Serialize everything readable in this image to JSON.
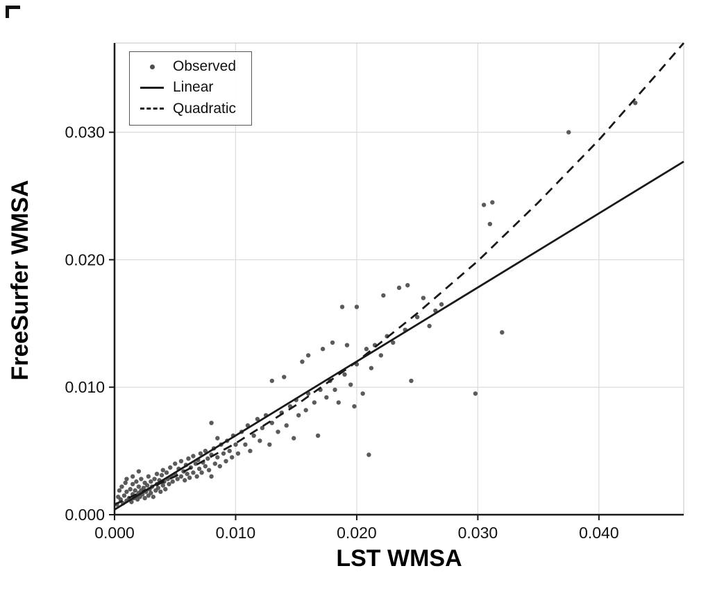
{
  "figure": {
    "background": "#ffffff",
    "accent_color": "#1a1a1a",
    "grid_color": "#dcdcdc",
    "point_color": "#4d4d4d"
  },
  "chart_data": {
    "type": "scatter",
    "title": "",
    "xlabel": "LST WMSA",
    "ylabel": "FreeSurfer WMSA",
    "xlim": [
      0,
      0.047
    ],
    "ylim": [
      0,
      0.037
    ],
    "xticks": [
      0.0,
      0.01,
      0.02,
      0.03,
      0.04
    ],
    "yticks": [
      0.0,
      0.01,
      0.02,
      0.03
    ],
    "grid": true,
    "legend_position": "top-left",
    "series": [
      {
        "name": "Observed",
        "type": "scatter",
        "color": "#4d4d4d",
        "points": [
          [
            0.0002,
            0.0008
          ],
          [
            0.0003,
            0.0014
          ],
          [
            0.0004,
            0.0019
          ],
          [
            0.0005,
            0.0012
          ],
          [
            0.0006,
            0.0022
          ],
          [
            0.0007,
            0.0009
          ],
          [
            0.0008,
            0.0015
          ],
          [
            0.0009,
            0.0025
          ],
          [
            0.001,
            0.0011
          ],
          [
            0.001,
            0.0018
          ],
          [
            0.001,
            0.0028
          ],
          [
            0.0012,
            0.0013
          ],
          [
            0.0013,
            0.002
          ],
          [
            0.0014,
            0.001
          ],
          [
            0.0015,
            0.0016
          ],
          [
            0.0015,
            0.0024
          ],
          [
            0.0015,
            0.003
          ],
          [
            0.0016,
            0.0013
          ],
          [
            0.0017,
            0.0019
          ],
          [
            0.0018,
            0.0015
          ],
          [
            0.0018,
            0.0026
          ],
          [
            0.0019,
            0.0012
          ],
          [
            0.002,
            0.0017
          ],
          [
            0.002,
            0.0022
          ],
          [
            0.002,
            0.0034
          ],
          [
            0.0021,
            0.0014
          ],
          [
            0.0022,
            0.0019
          ],
          [
            0.0022,
            0.0028
          ],
          [
            0.0023,
            0.0016
          ],
          [
            0.0024,
            0.0021
          ],
          [
            0.0025,
            0.0013
          ],
          [
            0.0025,
            0.0025
          ],
          [
            0.0026,
            0.0018
          ],
          [
            0.0027,
            0.0023
          ],
          [
            0.0028,
            0.0015
          ],
          [
            0.0028,
            0.003
          ],
          [
            0.0029,
            0.002
          ],
          [
            0.003,
            0.0017
          ],
          [
            0.003,
            0.0026
          ],
          [
            0.0031,
            0.0022
          ],
          [
            0.0032,
            0.0014
          ],
          [
            0.0033,
            0.0028
          ],
          [
            0.0034,
            0.0019
          ],
          [
            0.0035,
            0.0024
          ],
          [
            0.0035,
            0.0032
          ],
          [
            0.0036,
            0.0021
          ],
          [
            0.0037,
            0.0027
          ],
          [
            0.0038,
            0.0018
          ],
          [
            0.0039,
            0.0031
          ],
          [
            0.004,
            0.0023
          ],
          [
            0.004,
            0.0035
          ],
          [
            0.0041,
            0.0026
          ],
          [
            0.0042,
            0.002
          ],
          [
            0.0043,
            0.0033
          ],
          [
            0.0044,
            0.0028
          ],
          [
            0.0045,
            0.0024
          ],
          [
            0.0046,
            0.0037
          ],
          [
            0.0047,
            0.003
          ],
          [
            0.0048,
            0.0026
          ],
          [
            0.005,
            0.0032
          ],
          [
            0.005,
            0.004
          ],
          [
            0.0052,
            0.0028
          ],
          [
            0.0053,
            0.0036
          ],
          [
            0.0055,
            0.003
          ],
          [
            0.0055,
            0.0042
          ],
          [
            0.0057,
            0.0034
          ],
          [
            0.0058,
            0.0027
          ],
          [
            0.0059,
            0.0039
          ],
          [
            0.006,
            0.0032
          ],
          [
            0.0061,
            0.0044
          ],
          [
            0.0062,
            0.0029
          ],
          [
            0.0063,
            0.0037
          ],
          [
            0.0065,
            0.0033
          ],
          [
            0.0065,
            0.0046
          ],
          [
            0.0067,
            0.004
          ],
          [
            0.0068,
            0.003
          ],
          [
            0.0069,
            0.0043
          ],
          [
            0.007,
            0.0036
          ],
          [
            0.0071,
            0.0048
          ],
          [
            0.0072,
            0.0033
          ],
          [
            0.0073,
            0.0041
          ],
          [
            0.0075,
            0.0038
          ],
          [
            0.0075,
            0.005
          ],
          [
            0.0077,
            0.0044
          ],
          [
            0.0078,
            0.0035
          ],
          [
            0.008,
            0.0047
          ],
          [
            0.008,
            0.003
          ],
          [
            0.008,
            0.0072
          ],
          [
            0.0082,
            0.0052
          ],
          [
            0.0083,
            0.004
          ],
          [
            0.0085,
            0.0045
          ],
          [
            0.0085,
            0.006
          ],
          [
            0.0087,
            0.0038
          ],
          [
            0.0088,
            0.0055
          ],
          [
            0.009,
            0.0048
          ],
          [
            0.0092,
            0.0042
          ],
          [
            0.0093,
            0.0058
          ],
          [
            0.0095,
            0.005
          ],
          [
            0.0097,
            0.0045
          ],
          [
            0.0098,
            0.0062
          ],
          [
            0.01,
            0.0055
          ],
          [
            0.0102,
            0.0048
          ],
          [
            0.0105,
            0.0065
          ],
          [
            0.0108,
            0.0055
          ],
          [
            0.011,
            0.007
          ],
          [
            0.0112,
            0.005
          ],
          [
            0.0115,
            0.0062
          ],
          [
            0.0118,
            0.0075
          ],
          [
            0.012,
            0.0058
          ],
          [
            0.0122,
            0.0068
          ],
          [
            0.0125,
            0.0078
          ],
          [
            0.0128,
            0.0055
          ],
          [
            0.013,
            0.0072
          ],
          [
            0.013,
            0.0105
          ],
          [
            0.0135,
            0.0065
          ],
          [
            0.0138,
            0.008
          ],
          [
            0.014,
            0.0108
          ],
          [
            0.0142,
            0.007
          ],
          [
            0.0145,
            0.0085
          ],
          [
            0.0148,
            0.006
          ],
          [
            0.015,
            0.009
          ],
          [
            0.0152,
            0.0078
          ],
          [
            0.0155,
            0.012
          ],
          [
            0.0158,
            0.0082
          ],
          [
            0.016,
            0.0095
          ],
          [
            0.016,
            0.0125
          ],
          [
            0.0165,
            0.0088
          ],
          [
            0.0168,
            0.0062
          ],
          [
            0.017,
            0.0098
          ],
          [
            0.0172,
            0.013
          ],
          [
            0.0175,
            0.0092
          ],
          [
            0.0178,
            0.0105
          ],
          [
            0.018,
            0.0135
          ],
          [
            0.0182,
            0.0098
          ],
          [
            0.0185,
            0.0088
          ],
          [
            0.0188,
            0.0163
          ],
          [
            0.019,
            0.011
          ],
          [
            0.0192,
            0.0133
          ],
          [
            0.0195,
            0.0102
          ],
          [
            0.0198,
            0.0085
          ],
          [
            0.02,
            0.0118
          ],
          [
            0.02,
            0.0163
          ],
          [
            0.0205,
            0.0095
          ],
          [
            0.0208,
            0.013
          ],
          [
            0.021,
            0.0047
          ],
          [
            0.0212,
            0.0115
          ],
          [
            0.0215,
            0.0133
          ],
          [
            0.022,
            0.0125
          ],
          [
            0.0222,
            0.0172
          ],
          [
            0.0225,
            0.014
          ],
          [
            0.023,
            0.0135
          ],
          [
            0.0235,
            0.0178
          ],
          [
            0.024,
            0.0145
          ],
          [
            0.0242,
            0.018
          ],
          [
            0.0245,
            0.0105
          ],
          [
            0.025,
            0.0155
          ],
          [
            0.0255,
            0.017
          ],
          [
            0.026,
            0.0148
          ],
          [
            0.0265,
            0.016
          ],
          [
            0.027,
            0.0165
          ],
          [
            0.0298,
            0.0095
          ],
          [
            0.0305,
            0.0243
          ],
          [
            0.031,
            0.0228
          ],
          [
            0.0312,
            0.0245
          ],
          [
            0.032,
            0.0143
          ],
          [
            0.0375,
            0.03
          ],
          [
            0.043,
            0.0323
          ]
        ]
      },
      {
        "name": "Linear",
        "type": "line",
        "style": "solid",
        "color": "#1a1a1a",
        "points": [
          [
            0,
            0.0004
          ],
          [
            0.047,
            0.0277
          ]
        ]
      },
      {
        "name": "Quadratic",
        "type": "line",
        "style": "dashed",
        "color": "#1a1a1a",
        "points": [
          [
            0,
            0.0008
          ],
          [
            0.005,
            0.003
          ],
          [
            0.01,
            0.0056
          ],
          [
            0.015,
            0.0086
          ],
          [
            0.02,
            0.012
          ],
          [
            0.025,
            0.0158
          ],
          [
            0.03,
            0.0199
          ],
          [
            0.035,
            0.0245
          ],
          [
            0.04,
            0.0294
          ],
          [
            0.045,
            0.0348
          ],
          [
            0.047,
            0.037
          ]
        ]
      }
    ]
  }
}
